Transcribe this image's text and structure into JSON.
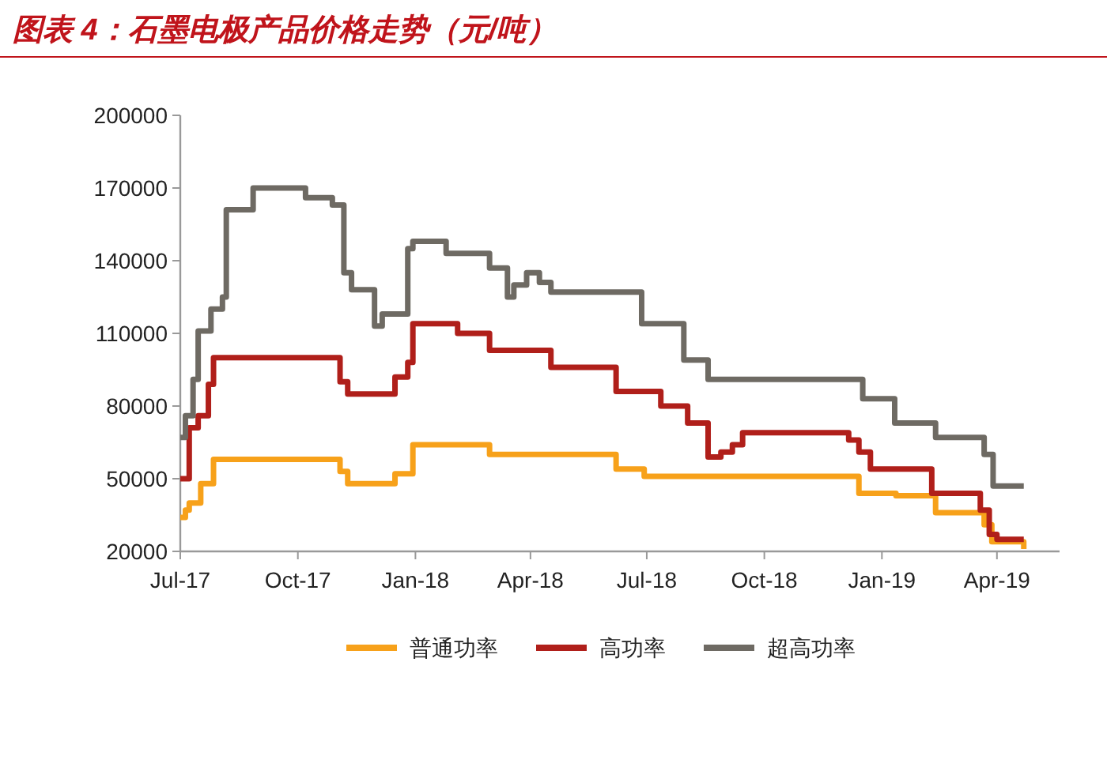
{
  "chart_data": {
    "type": "step",
    "title": "图表 4：石墨电极产品价格走势（元/吨）",
    "xlim": [
      "2017-07-01",
      "2019-05-20"
    ],
    "xticks": [
      {
        "value": "2017-07-01",
        "label": "Jul-17"
      },
      {
        "value": "2017-10-01",
        "label": "Oct-17"
      },
      {
        "value": "2018-01-01",
        "label": "Jan-18"
      },
      {
        "value": "2018-04-01",
        "label": "Apr-18"
      },
      {
        "value": "2018-07-01",
        "label": "Jul-18"
      },
      {
        "value": "2018-10-01",
        "label": "Oct-18"
      },
      {
        "value": "2019-01-01",
        "label": "Jan-19"
      },
      {
        "value": "2019-04-01",
        "label": "Apr-19"
      }
    ],
    "ylim": [
      20000,
      200000
    ],
    "yticks": [
      20000,
      50000,
      80000,
      110000,
      140000,
      170000,
      200000
    ],
    "legend": "bottom",
    "grid": false,
    "marker": "none",
    "line_style": "solid",
    "series": [
      {
        "name": "普通功率",
        "color": "#f7a11a",
        "x": [
          "2017-07-01",
          "2017-07-05",
          "2017-07-08",
          "2017-07-17",
          "2017-07-27",
          "2017-11-03",
          "2017-11-09",
          "2017-12-16",
          "2017-12-30",
          "2018-02-28",
          "2018-06-07",
          "2018-06-29",
          "2018-12-14",
          "2019-01-12",
          "2019-02-12",
          "2019-03-22",
          "2019-03-28",
          "2019-04-22"
        ],
        "values": [
          34000,
          37000,
          40000,
          48000,
          58000,
          53000,
          48000,
          52000,
          64000,
          60000,
          54000,
          51000,
          44000,
          43000,
          36000,
          31000,
          24000,
          21000
        ]
      },
      {
        "name": "高功率",
        "color": "#b01f1a",
        "x": [
          "2017-07-01",
          "2017-07-08",
          "2017-07-15",
          "2017-07-23",
          "2017-07-27",
          "2017-11-03",
          "2017-11-09",
          "2017-12-16",
          "2017-12-26",
          "2017-12-30",
          "2018-02-03",
          "2018-02-28",
          "2018-04-17",
          "2018-06-07",
          "2018-07-12",
          "2018-08-02",
          "2018-08-18",
          "2018-08-28",
          "2018-09-06",
          "2018-09-14",
          "2018-12-06",
          "2018-12-14",
          "2018-12-23",
          "2019-02-09",
          "2019-03-19",
          "2019-03-26",
          "2019-04-01",
          "2019-04-22"
        ],
        "values": [
          50000,
          71000,
          76000,
          89000,
          100000,
          90000,
          85000,
          92000,
          98000,
          114000,
          110000,
          103000,
          96000,
          86000,
          80000,
          73000,
          59000,
          61000,
          64000,
          69000,
          66000,
          61000,
          54000,
          44000,
          37000,
          27000,
          25000,
          25000
        ]
      },
      {
        "name": "超高功率",
        "color": "#6e6a63",
        "x": [
          "2017-07-01",
          "2017-07-05",
          "2017-07-11",
          "2017-07-15",
          "2017-07-25",
          "2017-08-03",
          "2017-08-06",
          "2017-08-27",
          "2017-10-07",
          "2017-10-28",
          "2017-11-06",
          "2017-11-12",
          "2017-11-30",
          "2017-12-06",
          "2017-12-26",
          "2017-12-30",
          "2018-01-25",
          "2018-02-28",
          "2018-03-14",
          "2018-03-19",
          "2018-03-29",
          "2018-04-08",
          "2018-04-17",
          "2018-06-27",
          "2018-07-30",
          "2018-08-18",
          "2018-12-17",
          "2019-01-11",
          "2019-02-12",
          "2019-03-22",
          "2019-03-29",
          "2019-04-22"
        ],
        "values": [
          67000,
          76000,
          91000,
          111000,
          120000,
          125000,
          161000,
          170000,
          166000,
          163000,
          135000,
          128000,
          113000,
          118000,
          145000,
          148000,
          143000,
          137000,
          125000,
          130000,
          135000,
          131000,
          127000,
          114000,
          99000,
          91000,
          83000,
          73000,
          67000,
          60000,
          47000,
          47000
        ]
      }
    ]
  }
}
